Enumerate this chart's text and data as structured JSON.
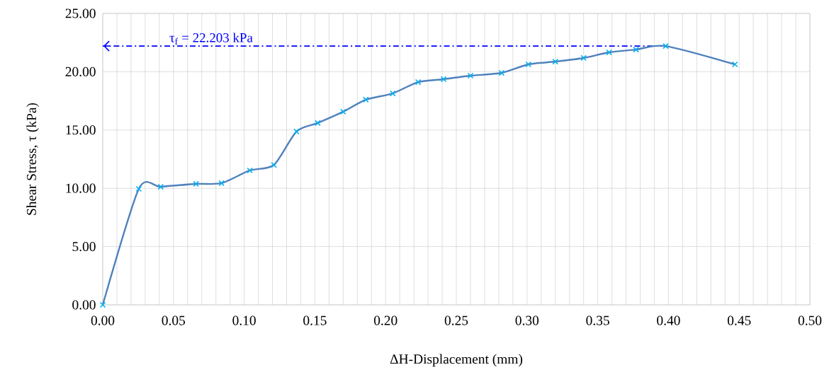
{
  "chart_data": {
    "type": "line",
    "xlabel": "ΔH-Displacement (mm)",
    "ylabel": "Shear Stress, τ (kPa)",
    "x": [
      0,
      0.0255,
      0.041,
      0.066,
      0.084,
      0.104,
      0.121,
      0.137,
      0.152,
      0.17,
      0.186,
      0.205,
      0.223,
      0.241,
      0.26,
      0.282,
      0.301,
      0.32,
      0.34,
      0.358,
      0.377,
      0.398,
      0.447
    ],
    "series": [
      {
        "color": "#4f81bd",
        "values": [
          0,
          9.95,
          10.13,
          10.38,
          10.44,
          11.53,
          12.0,
          14.87,
          15.6,
          16.57,
          17.6,
          18.14,
          19.11,
          19.36,
          19.66,
          19.9,
          20.63,
          20.87,
          21.18,
          21.66,
          21.9,
          22.2,
          20.63
        ]
      }
    ],
    "marker": "cross",
    "grid": true,
    "xlim": [
      0,
      0.5
    ],
    "ylim": [
      0,
      25
    ],
    "xticks": [
      {
        "value": 0,
        "label": "0.00"
      },
      {
        "value": 0.05,
        "label": "0.05"
      },
      {
        "value": 0.1,
        "label": "0.10"
      },
      {
        "value": 0.15,
        "label": "0.15"
      },
      {
        "value": 0.2,
        "label": "0.20"
      },
      {
        "value": 0.25,
        "label": "0.25"
      },
      {
        "value": 0.3,
        "label": "0.30"
      },
      {
        "value": 0.35,
        "label": "0.35"
      },
      {
        "value": 0.4,
        "label": "0.40"
      },
      {
        "value": 0.45,
        "label": "0.45"
      },
      {
        "value": 0.5,
        "label": "0.50"
      }
    ],
    "yticks": [
      {
        "value": 0,
        "label": "0.00"
      },
      {
        "value": 5,
        "label": "5.00"
      },
      {
        "value": 10,
        "label": "10.00"
      },
      {
        "value": 15,
        "label": "15.00"
      },
      {
        "value": 20,
        "label": "20.00"
      },
      {
        "value": 25,
        "label": "25.00"
      }
    ],
    "ref_lines": [
      {
        "axis": "y",
        "value": 22.203,
        "label": "τ$_{f}$ = 22.203 kPa",
        "color": "#0000ff",
        "line_style": "dashdotted"
      }
    ]
  }
}
